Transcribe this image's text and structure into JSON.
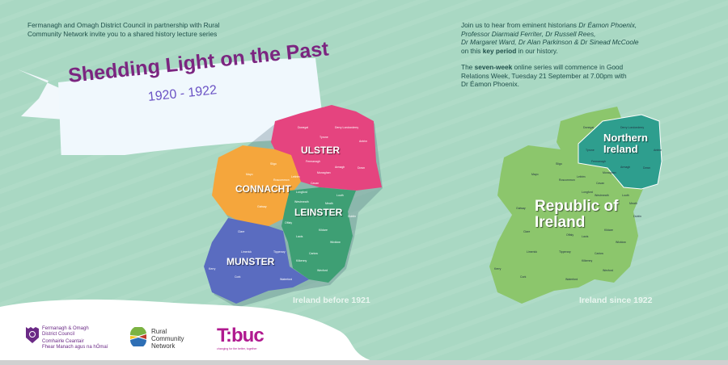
{
  "intro_text": "Fermanagh and Omagh District Council in partnership with Rural Community Network invite you to a shared history lecture series",
  "banner": {
    "title": "Shedding Light on the Past",
    "years": "1920 - 1922"
  },
  "info": {
    "p1_lead": "Join us to hear from eminent historians ",
    "speakers_line1": "Dr Éamon Phoenix,",
    "speakers_line2": "Professor Diarmaid Ferriter, Dr Russell Rees,",
    "speakers_line3": "Dr Margaret Ward, Dr Alan Parkinson & Dr Sinead McCoole",
    "p1_pre": "on this ",
    "p1_bold": "key period",
    "p1_post": " in our history.",
    "p2_pre": "The ",
    "p2_bold": "seven-week",
    "p2_post": " online series will commence in Good Relations Week, Tuesday 21 September at 7.00pm with Dr Éamon Phoenix."
  },
  "map_before": {
    "caption": "Ireland before 1921",
    "provinces": {
      "ulster": "ULSTER",
      "connacht": "CONNACHT",
      "leinster": "LEINSTER",
      "munster": "MUNSTER"
    },
    "colors": {
      "ulster": "#e5447f",
      "connacht": "#f5a63c",
      "leinster": "#3e9f74",
      "munster": "#5a6cc0"
    }
  },
  "map_after": {
    "caption": "Ireland since 1922",
    "regions": {
      "ni_line1": "Northern",
      "ni_line2": "Ireland",
      "roi_line1": "Republic of",
      "roi_line2": "Ireland"
    },
    "colors": {
      "roi": "#8cc66c",
      "ni": "#2e9e8e"
    }
  },
  "counties": [
    "Donegal",
    "Derry Londonderry",
    "Antrim",
    "Tyrone",
    "Fermanagh",
    "Armagh",
    "Down",
    "Monaghan",
    "Cavan",
    "Sligo",
    "Mayo",
    "Leitrim",
    "Roscommon",
    "Galway",
    "Longford",
    "Louth",
    "Westmeath",
    "Meath",
    "Offaly",
    "Dublin",
    "Laois",
    "Kildare",
    "Wicklow",
    "Carlow",
    "Kilkenny",
    "Wexford",
    "Clare",
    "Limerick",
    "Tipperary",
    "Kerry",
    "Cork",
    "Waterford"
  ],
  "footer": {
    "fodc_line1": "Fermanagh & Omagh",
    "fodc_line2": "District Council",
    "fodc_line3": "Comhairle Ceantair",
    "fodc_line4": "Fhear Manach agus na hÓmaí",
    "rcn_line1": "Rural",
    "rcn_line2": "Community",
    "rcn_line3": "Network",
    "tbuc": "T:buc",
    "tbuc_tagline": "changing for the better, together"
  }
}
